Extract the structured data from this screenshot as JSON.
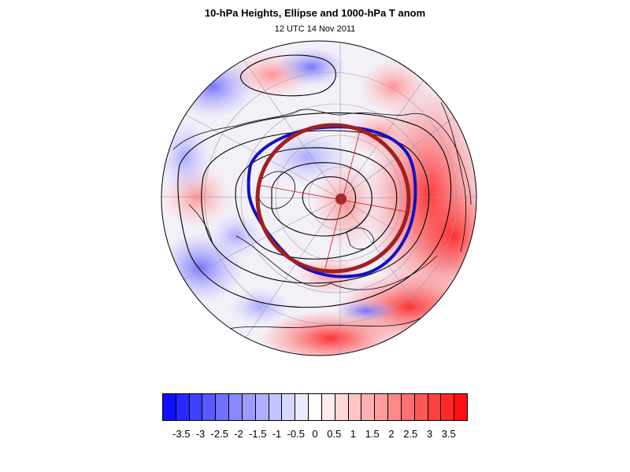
{
  "header": {
    "title": "10-hPa Heights, Ellipse and 1000-hPa T anom",
    "subtitle": "12 UTC 14 Nov 2011"
  },
  "map": {
    "projection": "north-polar-stereographic",
    "field": "1000-hPa temperature anomaly (shaded)",
    "contours": "10-hPa geopotential height (black)",
    "blue_contour_color": "#1010c8",
    "ellipse_color": "#a02020",
    "centroid_color": "#a82828",
    "land_outline_color": "#000000"
  },
  "colorbar": {
    "colors": [
      "#1010ff",
      "#2828ff",
      "#4040ff",
      "#5858ff",
      "#7070ff",
      "#8888ff",
      "#9c9cff",
      "#b0b0ff",
      "#c4c4ff",
      "#d8d8ff",
      "#ececff",
      "#ffffff",
      "#ffecec",
      "#ffd8d8",
      "#ffc4c4",
      "#ffb0b0",
      "#ff9c9c",
      "#ff8888",
      "#ff7070",
      "#ff5858",
      "#ff4040",
      "#ff2828",
      "#ff1010"
    ],
    "tick_labels": [
      "-3.5",
      "-3",
      "-2.5",
      "-2",
      "-1.5",
      "-1",
      "-0.5",
      "0",
      "0.5",
      "1",
      "1.5",
      "2",
      "2.5",
      "3",
      "3.5"
    ],
    "min": -3.5,
    "max": 3.5
  }
}
